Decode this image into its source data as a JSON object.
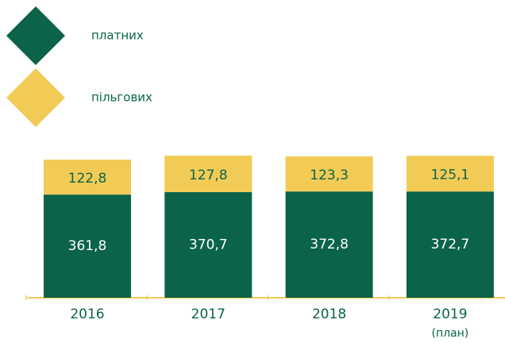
{
  "chart_data": {
    "type": "stacked_bar",
    "categories": [
      "2016",
      "2017",
      "2018",
      "2019"
    ],
    "category_sublabels": [
      null,
      null,
      null,
      "(план)"
    ],
    "series": [
      {
        "name": "платних",
        "color": "#0b6449",
        "values": [
          361.8,
          370.7,
          372.8,
          372.7
        ],
        "value_labels": [
          "361,8",
          "370,7",
          "372,8",
          "372,7"
        ]
      },
      {
        "name": "пільгових",
        "color": "#f2cb56",
        "values": [
          122.8,
          127.8,
          123.3,
          125.1
        ],
        "value_labels": [
          "122,8",
          "127,8",
          "123,3",
          "125,1"
        ]
      }
    ]
  }
}
